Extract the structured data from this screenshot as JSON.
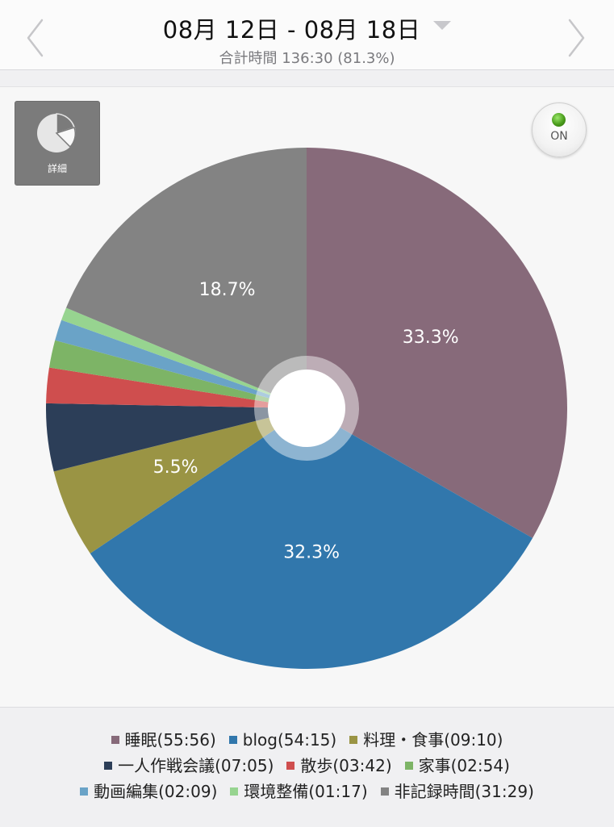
{
  "header": {
    "date_range": "08月 12日 - 08月 18日",
    "total": "合計時間 136:30 (81.3%)"
  },
  "controls": {
    "detail_label": "詳細",
    "toggle_label": "ON"
  },
  "chart_data": {
    "type": "pie",
    "slices": [
      {
        "label": "睡眠(55:56)",
        "value": 33.3,
        "color": "#876a7a",
        "show_pct": "33.3%"
      },
      {
        "label": "blog(54:15)",
        "value": 32.3,
        "color": "#3177ac",
        "show_pct": "32.3%"
      },
      {
        "label": "料理・食事(09:10)",
        "value": 5.5,
        "color": "#9a9444",
        "show_pct": "5.5%"
      },
      {
        "label": "一人作戦会議(07:05)",
        "value": 4.2,
        "color": "#2c3e58",
        "show_pct": ""
      },
      {
        "label": "散歩(03:42)",
        "value": 2.2,
        "color": "#cf4e4e",
        "show_pct": ""
      },
      {
        "label": "家事(02:54)",
        "value": 1.7,
        "color": "#7db466",
        "show_pct": ""
      },
      {
        "label": "動画編集(02:09)",
        "value": 1.3,
        "color": "#6aa3c7",
        "show_pct": ""
      },
      {
        "label": "環境整備(01:17)",
        "value": 0.8,
        "color": "#97d490",
        "show_pct": ""
      },
      {
        "label": "非記録時間(31:29)",
        "value": 18.7,
        "color": "#838383",
        "show_pct": "18.7%"
      }
    ],
    "legend_rows": [
      [
        0,
        1,
        2
      ],
      [
        3,
        4,
        5
      ],
      [
        6,
        7,
        8
      ]
    ]
  }
}
